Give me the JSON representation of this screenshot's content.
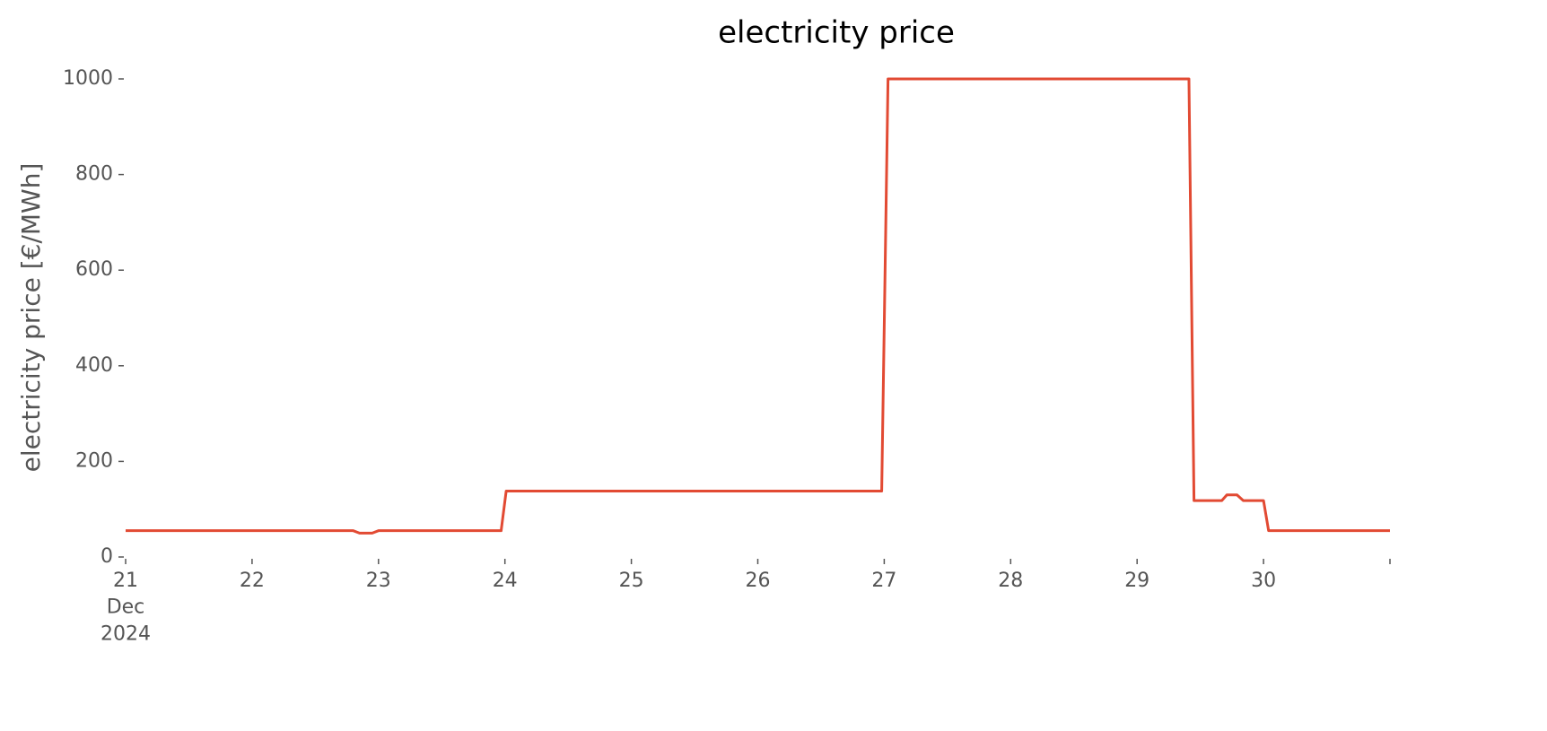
{
  "chart_data": {
    "type": "line",
    "title": "electricity price",
    "ylabel": "electricity price [€/MWh]",
    "x": [
      21.0,
      22.8,
      22.85,
      22.95,
      23.0,
      23.97,
      24.01,
      26.98,
      27.03,
      29.41,
      29.45,
      29.67,
      29.71,
      29.79,
      29.84,
      30.0,
      30.04,
      31.0
    ],
    "values": [
      55,
      55,
      50,
      50,
      55,
      55,
      138,
      138,
      1000,
      1000,
      118,
      118,
      130,
      130,
      118,
      118,
      55,
      55
    ],
    "color": "#e24a33",
    "xlim": [
      21,
      31
    ],
    "xticks": [
      {
        "value": 21,
        "label": "21\nDec\n2024"
      },
      22,
      23,
      24,
      25,
      26,
      27,
      28,
      29,
      30,
      {
        "value": 31,
        "label": null
      }
    ],
    "ylim": [
      0,
      1000
    ],
    "yticks": [
      0,
      200,
      400,
      600,
      800,
      1000
    ],
    "grid": false
  }
}
